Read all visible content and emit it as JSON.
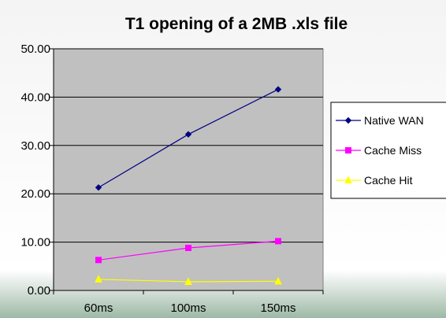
{
  "chart_data": {
    "type": "line",
    "title": "T1 opening of a 2MB .xls file",
    "xlabel": "",
    "ylabel": "",
    "categories": [
      "60ms",
      "100ms",
      "150ms"
    ],
    "ylim": [
      0,
      50
    ],
    "yticks": [
      "0.00",
      "10.00",
      "20.00",
      "30.00",
      "40.00",
      "50.00"
    ],
    "grid": true,
    "legend_position": "right",
    "plot_background": "#c0c0c0",
    "series": [
      {
        "name": "Native WAN",
        "values": [
          21.3,
          32.3,
          41.6
        ],
        "color": "#000080",
        "marker": "diamond"
      },
      {
        "name": "Cache Miss",
        "values": [
          6.3,
          8.8,
          10.2
        ],
        "color": "#ff00ff",
        "marker": "square"
      },
      {
        "name": "Cache Hit",
        "values": [
          2.3,
          1.8,
          1.9
        ],
        "color": "#ffff00",
        "marker": "triangle"
      }
    ]
  }
}
